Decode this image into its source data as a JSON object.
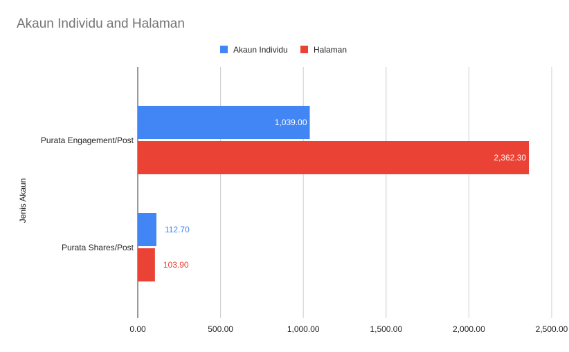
{
  "chart_data": {
    "type": "bar",
    "orientation": "horizontal",
    "title": "Akaun Individu and Halaman",
    "xlabel": "",
    "ylabel": "Jenis Akaun",
    "categories": [
      "Purata Engagement/Post",
      "Purata Shares/Post"
    ],
    "series": [
      {
        "name": "Akaun Individu",
        "color": "#4285f4",
        "values": [
          1039.0,
          112.7
        ],
        "labels": [
          "1,039.00",
          "112.70"
        ]
      },
      {
        "name": "Halaman",
        "color": "#ea4335",
        "values": [
          2362.3,
          103.9
        ],
        "labels": [
          "2,362.30",
          "103.90"
        ]
      }
    ],
    "xlim": [
      0,
      2500
    ],
    "xticks": [
      0,
      500,
      1000,
      1500,
      2000,
      2500
    ],
    "xtick_labels": [
      "0.00",
      "500.00",
      "1,000.00",
      "1,500.00",
      "2,000.00",
      "2,500.00"
    ],
    "grid": true,
    "legend_position": "top"
  }
}
